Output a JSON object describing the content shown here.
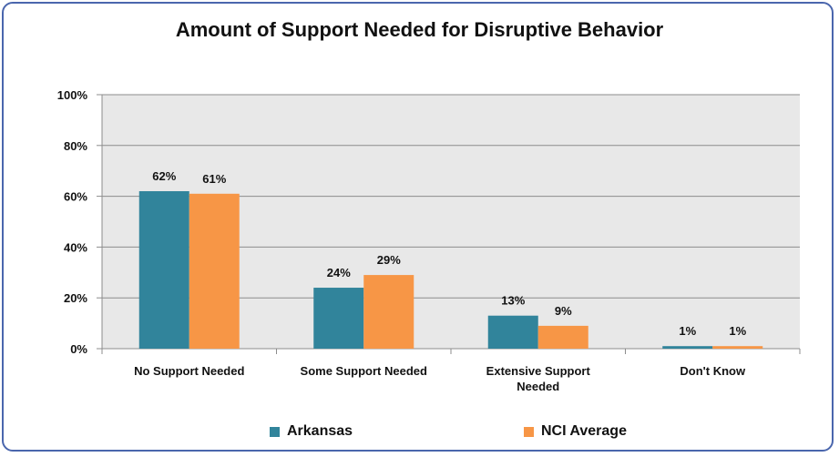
{
  "chart_data": {
    "type": "bar",
    "title": "Amount of Support Needed for Disruptive Behavior",
    "categories": [
      [
        "No Support Needed"
      ],
      [
        "Some Support Needed"
      ],
      [
        "Extensive Support",
        "Needed"
      ],
      [
        "Don't Know"
      ]
    ],
    "series": [
      {
        "name": "Arkansas",
        "color": "#31849b",
        "values": [
          62,
          24,
          13,
          1
        ],
        "labels": [
          "62%",
          "24%",
          "13%",
          "1%"
        ]
      },
      {
        "name": "NCI Average",
        "color": "#f79646",
        "values": [
          61,
          29,
          9,
          1
        ],
        "labels": [
          "61%",
          "29%",
          "9%",
          "1%"
        ]
      }
    ],
    "ylim": [
      0,
      100
    ],
    "yticks": [
      0,
      20,
      40,
      60,
      80,
      100
    ],
    "ytick_labels": [
      "0%",
      "20%",
      "40%",
      "60%",
      "80%",
      "100%"
    ],
    "grid": true,
    "plot_background": "#e8e8e8",
    "legend_position": "bottom"
  }
}
